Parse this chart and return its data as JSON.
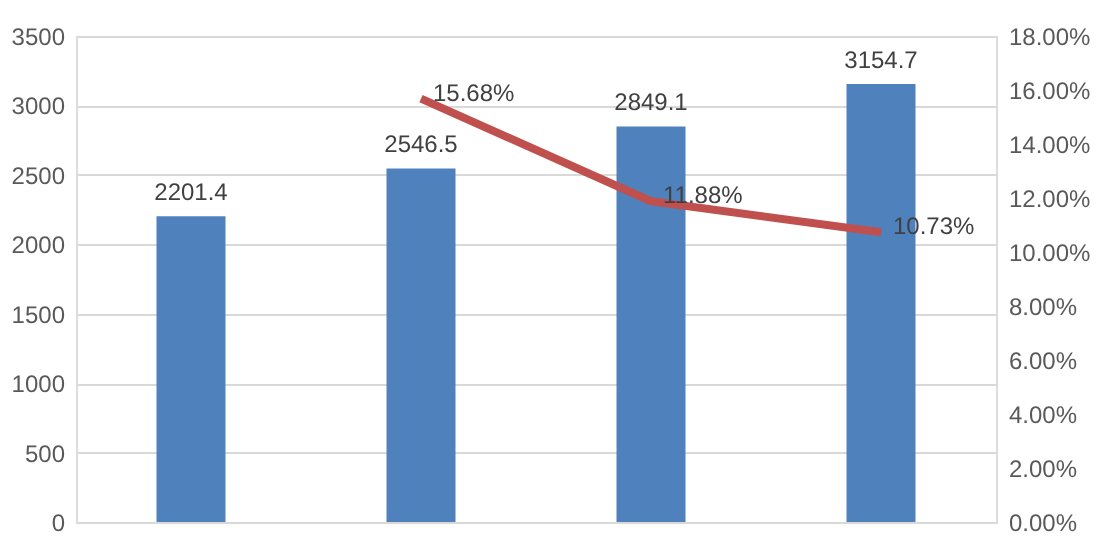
{
  "chart_data": {
    "type": "bar",
    "categories": [
      null,
      null,
      null,
      null
    ],
    "series": [
      {
        "color": "#4f81bd",
        "values": [
          2201.4,
          2546.5,
          2849.1,
          3154.7
        ],
        "value_labels": [
          "2201.4",
          "2546.5",
          "2849.1",
          "3154.7"
        ]
      },
      {
        "type": "line",
        "axis": "y2",
        "color": "#c0504d",
        "values": [
          null,
          15.68,
          11.88,
          10.73
        ],
        "value_labels": [
          null,
          "15.68%",
          "11.88%",
          "10.73%"
        ]
      }
    ],
    "ylim": [
      0,
      3500
    ],
    "yticks": [
      0,
      500,
      1000,
      1500,
      2000,
      2500,
      3000,
      3500
    ],
    "y2lim": [
      0,
      18
    ],
    "y2ticks": [
      {
        "value": 0,
        "label": "0.00%"
      },
      {
        "value": 2,
        "label": "2.00%"
      },
      {
        "value": 4,
        "label": "4.00%"
      },
      {
        "value": 6,
        "label": "6.00%"
      },
      {
        "value": 8,
        "label": "8.00%"
      },
      {
        "value": 10,
        "label": "10.00%"
      },
      {
        "value": 12,
        "label": "12.00%"
      },
      {
        "value": 14,
        "label": "14.00%"
      },
      {
        "value": 16,
        "label": "16.00%"
      },
      {
        "value": 18,
        "label": "18.00%"
      }
    ],
    "tick_labels": "y",
    "grid": "y",
    "marker": "none",
    "line_style": "solid"
  }
}
